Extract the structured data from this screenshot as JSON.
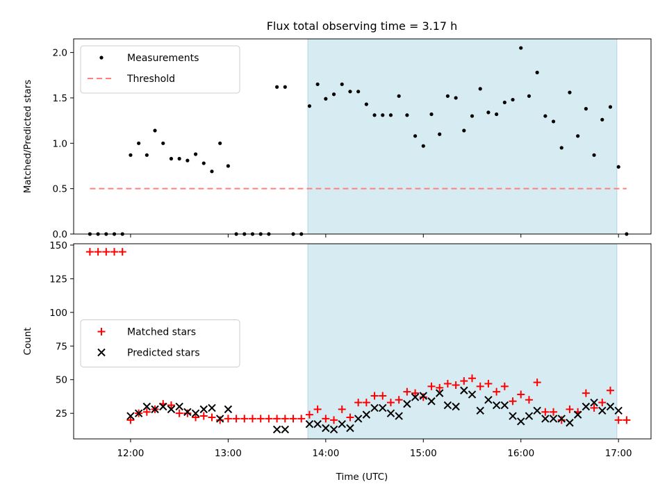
{
  "chart_data": {
    "title": "Flux total observing time = 3.17 h",
    "xlabel": "Time (UTC)",
    "x_ticks": [
      "12:00",
      "13:00",
      "14:00",
      "15:00",
      "16:00",
      "17:00"
    ],
    "x_range": [
      "11:25",
      "17:20"
    ],
    "shaded_interval": [
      "13:49",
      "16:59"
    ],
    "shade_color": "#add8e6",
    "panels": [
      {
        "type": "scatter",
        "ylabel": "Matched/Predicted stars",
        "ylim": [
          0,
          2.15
        ],
        "yticks": [
          "0.0",
          "0.5",
          "1.0",
          "1.5",
          "2.0"
        ],
        "legend_position": "upper left",
        "threshold": {
          "name": "Threshold",
          "value": 0.5,
          "x_start": "11:35",
          "x_end": "17:05",
          "color": "#ff7f7f"
        },
        "series": [
          {
            "name": "Measurements",
            "marker": "dot",
            "color": "#000000",
            "points": [
              [
                "11:35",
                0
              ],
              [
                "11:40",
                0
              ],
              [
                "11:45",
                0
              ],
              [
                "11:50",
                0
              ],
              [
                "11:55",
                0
              ],
              [
                "12:00",
                0.87
              ],
              [
                "12:05",
                1.0
              ],
              [
                "12:10",
                0.87
              ],
              [
                "12:15",
                1.14
              ],
              [
                "12:20",
                1.0
              ],
              [
                "12:25",
                0.83
              ],
              [
                "12:30",
                0.83
              ],
              [
                "12:35",
                0.81
              ],
              [
                "12:40",
                0.88
              ],
              [
                "12:45",
                0.78
              ],
              [
                "12:50",
                0.69
              ],
              [
                "12:55",
                1.0
              ],
              [
                "13:00",
                0.75
              ],
              [
                "13:05",
                0
              ],
              [
                "13:10",
                0
              ],
              [
                "13:15",
                0
              ],
              [
                "13:20",
                0
              ],
              [
                "13:25",
                0
              ],
              [
                "13:30",
                1.62
              ],
              [
                "13:35",
                1.62
              ],
              [
                "13:40",
                0
              ],
              [
                "13:45",
                0
              ],
              [
                "13:50",
                1.41
              ],
              [
                "13:55",
                1.65
              ],
              [
                "14:00",
                1.49
              ],
              [
                "14:05",
                1.54
              ],
              [
                "14:10",
                1.65
              ],
              [
                "14:15",
                1.57
              ],
              [
                "14:20",
                1.57
              ],
              [
                "14:25",
                1.43
              ],
              [
                "14:30",
                1.31
              ],
              [
                "14:35",
                1.31
              ],
              [
                "14:40",
                1.31
              ],
              [
                "14:45",
                1.52
              ],
              [
                "14:50",
                1.31
              ],
              [
                "14:55",
                1.08
              ],
              [
                "15:00",
                0.97
              ],
              [
                "15:05",
                1.32
              ],
              [
                "15:10",
                1.1
              ],
              [
                "15:15",
                1.52
              ],
              [
                "15:20",
                1.5
              ],
              [
                "15:25",
                1.14
              ],
              [
                "15:30",
                1.3
              ],
              [
                "15:35",
                1.6
              ],
              [
                "15:40",
                1.34
              ],
              [
                "15:45",
                1.32
              ],
              [
                "15:50",
                1.45
              ],
              [
                "15:55",
                1.48
              ],
              [
                "16:00",
                2.05
              ],
              [
                "16:05",
                1.52
              ],
              [
                "16:10",
                1.78
              ],
              [
                "16:15",
                1.3
              ],
              [
                "16:20",
                1.24
              ],
              [
                "16:25",
                0.95
              ],
              [
                "16:30",
                1.56
              ],
              [
                "16:35",
                1.08
              ],
              [
                "16:40",
                1.38
              ],
              [
                "16:45",
                0.87
              ],
              [
                "16:50",
                1.26
              ],
              [
                "16:55",
                1.4
              ],
              [
                "17:00",
                0.74
              ],
              [
                "17:05",
                0
              ]
            ]
          }
        ]
      },
      {
        "type": "scatter",
        "ylabel": "Count",
        "ylim": [
          6,
          151
        ],
        "yticks": [
          "25",
          "50",
          "75",
          "100",
          "125",
          "150"
        ],
        "legend_position": "center left",
        "series": [
          {
            "name": "Matched stars",
            "marker": "+",
            "color": "#ff0000",
            "points": [
              [
                "11:35",
                145
              ],
              [
                "11:40",
                145
              ],
              [
                "11:45",
                145
              ],
              [
                "11:50",
                145
              ],
              [
                "11:55",
                145
              ],
              [
                "12:00",
                20
              ],
              [
                "12:05",
                25
              ],
              [
                "12:10",
                26
              ],
              [
                "12:15",
                28
              ],
              [
                "12:20",
                32
              ],
              [
                "12:25",
                31
              ],
              [
                "12:30",
                25
              ],
              [
                "12:35",
                25
              ],
              [
                "12:40",
                22
              ],
              [
                "12:45",
                23
              ],
              [
                "12:50",
                22
              ],
              [
                "12:55",
                20
              ],
              [
                "13:00",
                21
              ],
              [
                "13:05",
                21
              ],
              [
                "13:10",
                21
              ],
              [
                "13:15",
                21
              ],
              [
                "13:20",
                21
              ],
              [
                "13:25",
                21
              ],
              [
                "13:30",
                21
              ],
              [
                "13:35",
                21
              ],
              [
                "13:40",
                21
              ],
              [
                "13:45",
                21
              ],
              [
                "13:50",
                24
              ],
              [
                "13:55",
                28
              ],
              [
                "14:00",
                21
              ],
              [
                "14:05",
                20
              ],
              [
                "14:10",
                28
              ],
              [
                "14:15",
                22
              ],
              [
                "14:20",
                33
              ],
              [
                "14:25",
                33
              ],
              [
                "14:30",
                38
              ],
              [
                "14:35",
                38
              ],
              [
                "14:40",
                33
              ],
              [
                "14:45",
                35
              ],
              [
                "14:50",
                41
              ],
              [
                "14:55",
                40
              ],
              [
                "15:00",
                37
              ],
              [
                "15:05",
                45
              ],
              [
                "15:10",
                44
              ],
              [
                "15:15",
                47
              ],
              [
                "15:20",
                46
              ],
              [
                "15:25",
                49
              ],
              [
                "15:30",
                51
              ],
              [
                "15:35",
                45
              ],
              [
                "15:40",
                47
              ],
              [
                "15:45",
                41
              ],
              [
                "15:50",
                45
              ],
              [
                "15:55",
                34
              ],
              [
                "16:00",
                39
              ],
              [
                "16:05",
                35
              ],
              [
                "16:10",
                48
              ],
              [
                "16:15",
                26
              ],
              [
                "16:20",
                26
              ],
              [
                "16:25",
                20
              ],
              [
                "16:30",
                28
              ],
              [
                "16:35",
                26
              ],
              [
                "16:40",
                40
              ],
              [
                "16:45",
                29
              ],
              [
                "16:50",
                33
              ],
              [
                "16:55",
                42
              ],
              [
                "17:00",
                20
              ],
              [
                "17:05",
                20
              ]
            ]
          },
          {
            "name": "Predicted stars",
            "marker": "x",
            "color": "#000000",
            "points": [
              [
                "12:00",
                23
              ],
              [
                "12:05",
                25
              ],
              [
                "12:10",
                30
              ],
              [
                "12:15",
                28
              ],
              [
                "12:20",
                30
              ],
              [
                "12:25",
                28
              ],
              [
                "12:30",
                30
              ],
              [
                "12:35",
                26
              ],
              [
                "12:40",
                25
              ],
              [
                "12:45",
                28
              ],
              [
                "12:50",
                29
              ],
              [
                "12:55",
                21
              ],
              [
                "13:00",
                28
              ],
              [
                "13:30",
                13
              ],
              [
                "13:35",
                13
              ],
              [
                "13:50",
                17
              ],
              [
                "13:55",
                17
              ],
              [
                "14:00",
                14
              ],
              [
                "14:05",
                13
              ],
              [
                "14:10",
                17
              ],
              [
                "14:15",
                14
              ],
              [
                "14:20",
                21
              ],
              [
                "14:25",
                24
              ],
              [
                "14:30",
                29
              ],
              [
                "14:35",
                29
              ],
              [
                "14:40",
                25
              ],
              [
                "14:45",
                23
              ],
              [
                "14:50",
                32
              ],
              [
                "14:55",
                37
              ],
              [
                "15:00",
                38
              ],
              [
                "15:05",
                34
              ],
              [
                "15:10",
                40
              ],
              [
                "15:15",
                31
              ],
              [
                "15:20",
                30
              ],
              [
                "15:25",
                42
              ],
              [
                "15:30",
                39
              ],
              [
                "15:35",
                27
              ],
              [
                "15:40",
                35
              ],
              [
                "15:45",
                31
              ],
              [
                "15:50",
                31
              ],
              [
                "15:55",
                23
              ],
              [
                "16:00",
                19
              ],
              [
                "16:05",
                23
              ],
              [
                "16:10",
                27
              ],
              [
                "16:15",
                21
              ],
              [
                "16:20",
                21
              ],
              [
                "16:25",
                21
              ],
              [
                "16:30",
                18
              ],
              [
                "16:35",
                24
              ],
              [
                "16:40",
                30
              ],
              [
                "16:45",
                33
              ],
              [
                "16:50",
                27
              ],
              [
                "16:55",
                30
              ],
              [
                "17:00",
                27
              ]
            ]
          }
        ]
      }
    ]
  }
}
